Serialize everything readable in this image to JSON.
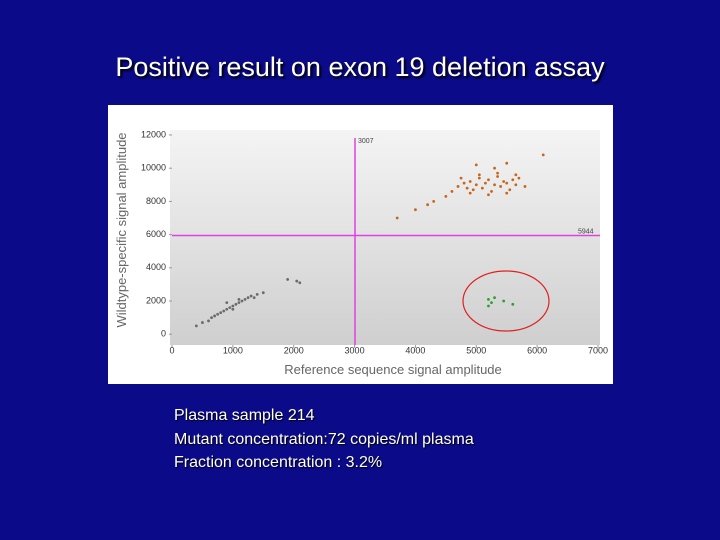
{
  "title": "Positive result on exon 19 deletion assay",
  "notes": [
    "Plasma sample 214",
    "Mutant concentration:72 copies/ml plasma",
    "Fraction concentration : 3.2%"
  ],
  "chart_data": {
    "type": "scatter",
    "x_label": "Reference sequence signal amplitude",
    "y_label": "Wildtype-specific signal amplitude",
    "xlim": [
      0,
      7000
    ],
    "xticks": [
      0,
      1000,
      2000,
      3000,
      4000,
      5000,
      6000,
      7000
    ],
    "ylim": [
      -650,
      12300
    ],
    "yticks": [
      0,
      2000,
      4000,
      6000,
      8000,
      10000,
      12000
    ],
    "x_threshold": 3007,
    "y_threshold": 5944,
    "threshold_color": "#e040e0",
    "series": [
      {
        "color": "#6a6a6a",
        "x": [
          400,
          500,
          600,
          650,
          700,
          750,
          800,
          850,
          900,
          950,
          1000,
          1050,
          1100,
          1150,
          1200,
          1250,
          1300,
          1350,
          1400,
          1500,
          900,
          1000,
          1100,
          1900,
          2050,
          2100
        ],
        "values": [
          500,
          700,
          800,
          1000,
          1100,
          1200,
          1300,
          1400,
          1500,
          1600,
          1700,
          1800,
          1900,
          2000,
          2100,
          2200,
          2300,
          2200,
          2400,
          2500,
          1900,
          1500,
          2100,
          3300,
          3200,
          3100
        ]
      },
      {
        "color": "#c8651b",
        "x": [
          3700,
          4000,
          4200,
          4300,
          4500,
          4600,
          4700,
          4800,
          4850,
          4900,
          4950,
          5000,
          5050,
          5100,
          5150,
          5200,
          5250,
          5300,
          5350,
          5400,
          5450,
          5500,
          5550,
          5600,
          5650,
          5700,
          5800,
          4750,
          4900,
          5050,
          5200,
          5350,
          5500,
          5650,
          5500,
          6100,
          5300,
          5000
        ],
        "values": [
          7000,
          7500,
          7800,
          8000,
          8300,
          8600,
          8900,
          9100,
          8800,
          9200,
          8700,
          9000,
          9400,
          8800,
          9100,
          9300,
          8600,
          9000,
          9500,
          8900,
          9200,
          9100,
          8700,
          9300,
          9000,
          9400,
          8900,
          9400,
          8500,
          9600,
          8400,
          9700,
          8500,
          9600,
          10300,
          10800,
          10000,
          10200
        ]
      },
      {
        "color": "#2ca02c",
        "x": [
          5200,
          5250,
          5450,
          5200,
          5600,
          5300
        ],
        "values": [
          2100,
          1900,
          2000,
          1700,
          1800,
          2200
        ]
      }
    ]
  }
}
